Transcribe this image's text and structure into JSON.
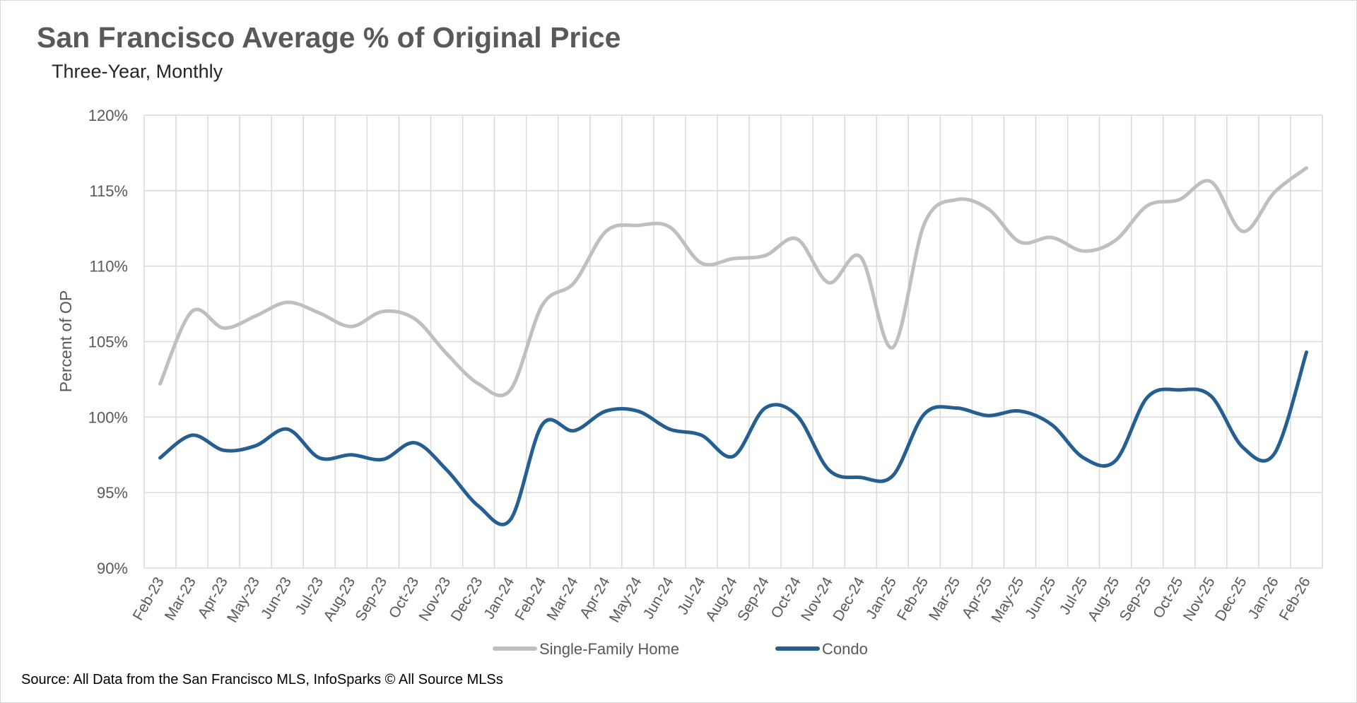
{
  "title": "San Francisco Average % of Original Price",
  "subtitle": "Three-Year, Monthly",
  "source": "Source: All Data from the San Francisco MLS, InfoSparks © All Source MLSs",
  "chart_data": {
    "type": "line",
    "title": "San Francisco Average % of Original Price",
    "subtitle": "Three-Year, Monthly",
    "xlabel": "",
    "ylabel": "Percent of OP",
    "ylim": [
      90,
      120
    ],
    "yticks": [
      "90%",
      "95%",
      "100%",
      "105%",
      "110%",
      "115%",
      "120%"
    ],
    "grid": true,
    "legend": "bottom",
    "categories": [
      "Feb-23",
      "Mar-23",
      "Apr-23",
      "May-23",
      "Jun-23",
      "Jul-23",
      "Aug-23",
      "Sep-23",
      "Oct-23",
      "Nov-23",
      "Dec-23",
      "Jan-24",
      "Feb-24",
      "Mar-24",
      "Apr-24",
      "May-24",
      "Jun-24",
      "Jul-24",
      "Aug-24",
      "Sep-24",
      "Oct-24",
      "Nov-24",
      "Dec-24",
      "Jan-25",
      "Feb-25",
      "Mar-25",
      "Apr-25",
      "May-25",
      "Jun-25",
      "Jul-25",
      "Aug-25",
      "Sep-25",
      "Oct-25",
      "Nov-25",
      "Dec-25",
      "Jan-26",
      "Feb-26"
    ],
    "series": [
      {
        "name": "Single-Family Home",
        "color": "#bfbfbf",
        "values": [
          102.2,
          107.0,
          105.9,
          106.7,
          107.6,
          106.9,
          106.0,
          107.0,
          106.5,
          104.2,
          102.2,
          101.8,
          107.4,
          108.9,
          112.3,
          112.7,
          112.6,
          110.2,
          110.5,
          110.7,
          111.8,
          108.9,
          110.6,
          104.6,
          112.8,
          114.4,
          113.8,
          111.6,
          111.9,
          111.0,
          111.7,
          114.0,
          114.4,
          115.6,
          112.3,
          114.9,
          116.5
        ]
      },
      {
        "name": "Condo",
        "color": "#255e91",
        "values": [
          97.3,
          98.8,
          97.8,
          98.1,
          99.2,
          97.3,
          97.5,
          97.2,
          98.3,
          96.5,
          94.1,
          93.2,
          99.5,
          99.1,
          100.4,
          100.4,
          99.2,
          98.8,
          97.4,
          100.6,
          100.1,
          96.5,
          96.0,
          96.1,
          100.2,
          100.6,
          100.1,
          100.4,
          99.5,
          97.3,
          97.1,
          101.3,
          101.8,
          101.4,
          98.0,
          97.6,
          104.3
        ]
      }
    ]
  }
}
